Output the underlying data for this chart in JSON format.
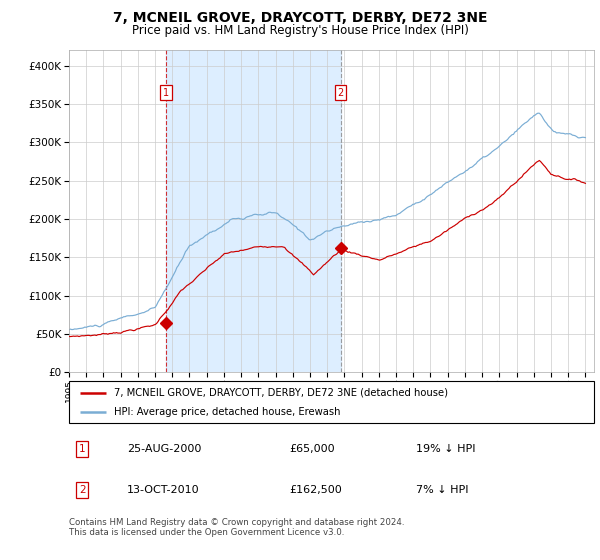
{
  "title": "7, MCNEIL GROVE, DRAYCOTT, DERBY, DE72 3NE",
  "subtitle": "Price paid vs. HM Land Registry's House Price Index (HPI)",
  "sale1_date": "25-AUG-2000",
  "sale1_price": 65000,
  "sale1_label": "19% ↓ HPI",
  "sale2_date": "13-OCT-2010",
  "sale2_price": 162500,
  "sale2_label": "7% ↓ HPI",
  "legend_red": "7, MCNEIL GROVE, DRAYCOTT, DERBY, DE72 3NE (detached house)",
  "legend_blue": "HPI: Average price, detached house, Erewash",
  "footer": "Contains HM Land Registry data © Crown copyright and database right 2024.\nThis data is licensed under the Open Government Licence v3.0.",
  "ylim": [
    0,
    420000
  ],
  "x_start_year": 1995,
  "x_end_year": 2025,
  "sale1_year": 2000.65,
  "sale2_year": 2010.78,
  "red_color": "#cc0000",
  "blue_color": "#7aadd4",
  "bg_shade_color": "#ddeeff",
  "title_fontsize": 10,
  "subtitle_fontsize": 8.5,
  "axis_fontsize": 7
}
